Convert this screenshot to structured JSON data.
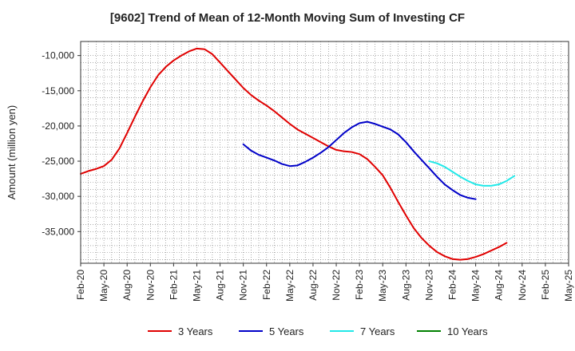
{
  "chart_data": {
    "type": "line",
    "title": "[9602]  Trend of Mean of 12-Month Moving Sum of Investing CF",
    "xlabel": "",
    "ylabel": "Amount (million yen)",
    "ylim": [
      -39500,
      -8000
    ],
    "yticks": [
      -10000,
      -15000,
      -20000,
      -25000,
      -30000,
      -35000
    ],
    "ytick_labels": [
      "-10,000",
      "-15,000",
      "-20,000",
      "-25,000",
      "-30,000",
      "-35,000"
    ],
    "xtick_labels": [
      "Feb-20",
      "May-20",
      "Aug-20",
      "Nov-20",
      "Feb-21",
      "May-21",
      "Aug-21",
      "Nov-21",
      "Feb-22",
      "May-22",
      "Aug-22",
      "Nov-22",
      "Feb-23",
      "May-23",
      "Aug-23",
      "Nov-23",
      "Feb-24",
      "May-24",
      "Aug-24",
      "Nov-24",
      "Feb-25",
      "May-25"
    ],
    "x_start": "Feb-20",
    "x_unit": "months",
    "grid": true,
    "legend_position": "bottom",
    "series": [
      {
        "name": "3 Years",
        "color": "#e00000",
        "start_index": 0,
        "values": [
          -26800,
          -26400,
          -26100,
          -25700,
          -24800,
          -23200,
          -21000,
          -18700,
          -16500,
          -14500,
          -12800,
          -11600,
          -10700,
          -10000,
          -9400,
          -9000,
          -9100,
          -9800,
          -11000,
          -12200,
          -13400,
          -14600,
          -15600,
          -16400,
          -17100,
          -17900,
          -18800,
          -19700,
          -20500,
          -21100,
          -21700,
          -22300,
          -22900,
          -23400,
          -23600,
          -23700,
          -24000,
          -24700,
          -25800,
          -27000,
          -28800,
          -30800,
          -32700,
          -34500,
          -35900,
          -37000,
          -37900,
          -38500,
          -38900,
          -39000,
          -38900,
          -38600,
          -38200,
          -37700,
          -37200,
          -36600
        ]
      },
      {
        "name": "5 Years",
        "color": "#0000c8",
        "start_index": 21,
        "values": [
          -22600,
          -23500,
          -24100,
          -24500,
          -24900,
          -25400,
          -25700,
          -25600,
          -25100,
          -24500,
          -23800,
          -23000,
          -22000,
          -21000,
          -20200,
          -19600,
          -19400,
          -19700,
          -20100,
          -20500,
          -21200,
          -22300,
          -23600,
          -24800,
          -26000,
          -27200,
          -28300,
          -29100,
          -29800,
          -30200,
          -30400
        ]
      },
      {
        "name": "7 Years",
        "color": "#22e8e8",
        "start_index": 45,
        "values": [
          -25000,
          -25300,
          -25800,
          -26500,
          -27200,
          -27800,
          -28300,
          -28500,
          -28500,
          -28300,
          -27800,
          -27100
        ]
      },
      {
        "name": "10 Years",
        "color": "#008000",
        "start_index": 0,
        "values": []
      }
    ]
  }
}
